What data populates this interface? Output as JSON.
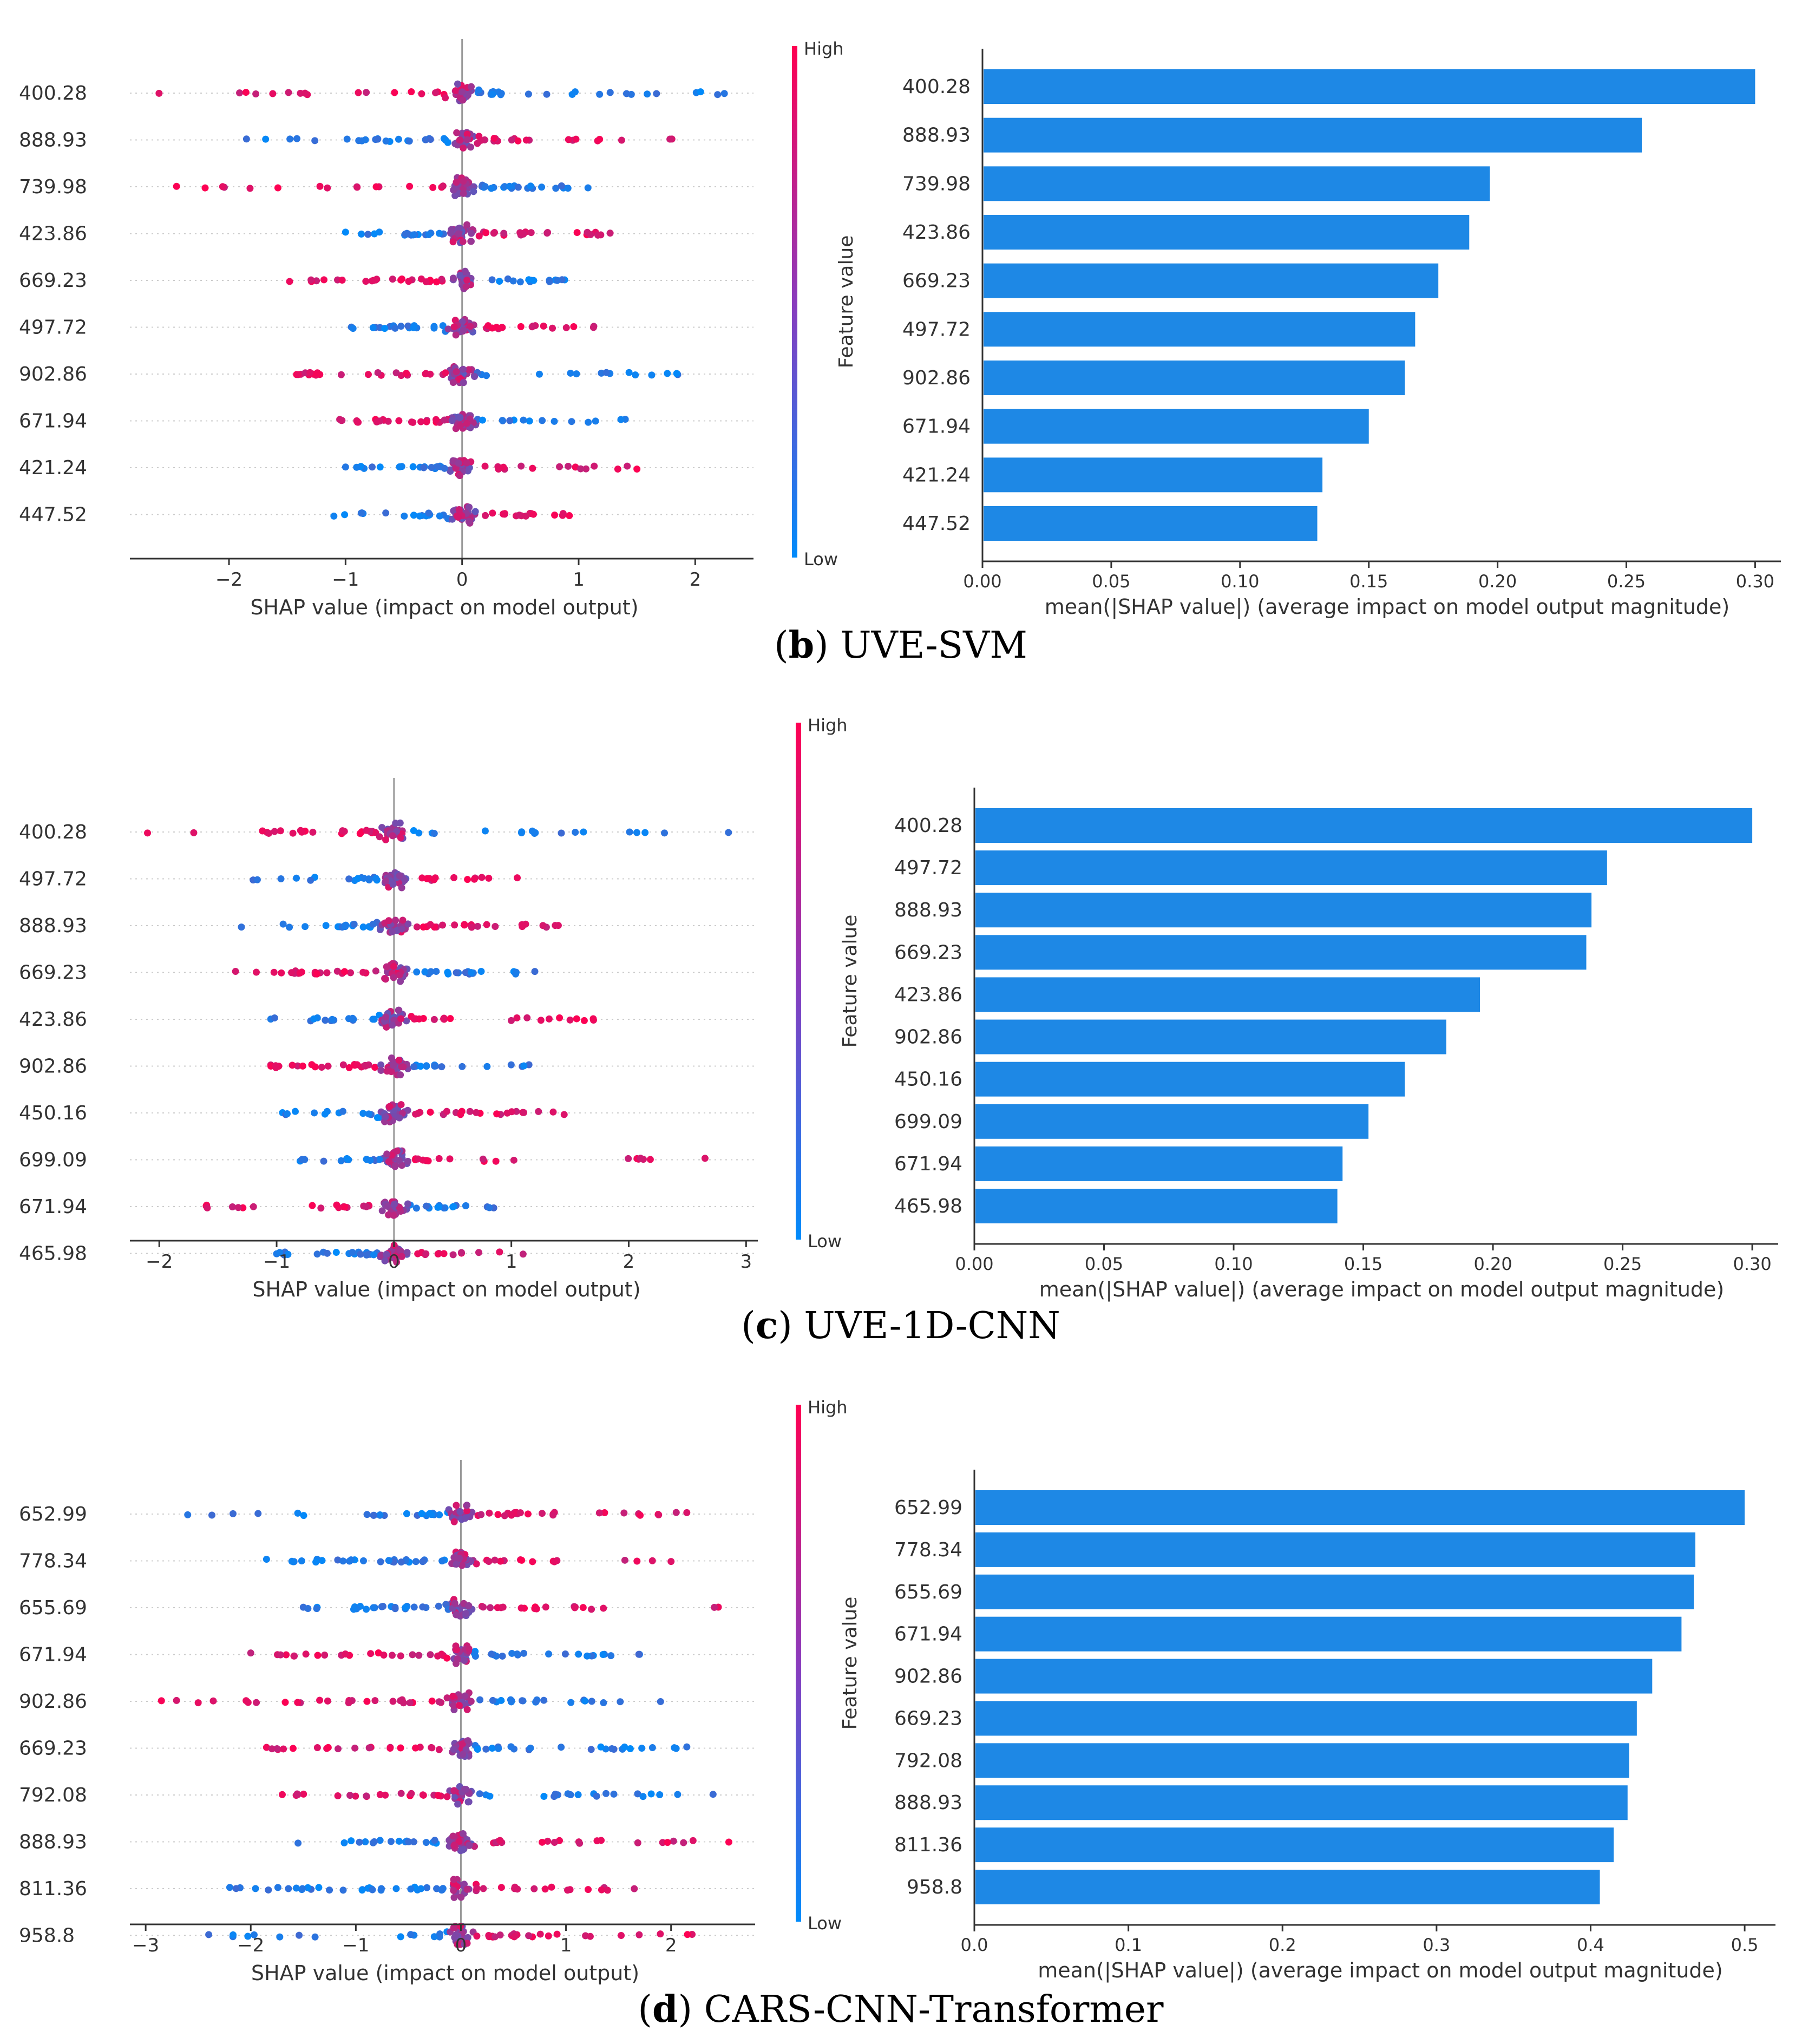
{
  "colors": {
    "high": "#ff0052",
    "low": "#008bfb",
    "bar": "#1e88e5",
    "axis": "#333333",
    "center_line": "#999999"
  },
  "colorbar": {
    "high_label": "High",
    "low_label": "Low",
    "title": "Feature value"
  },
  "panels": [
    {
      "caption_letter": "b",
      "caption_text": ") UVE-SVM",
      "caption_paren": "(",
      "chart_data": [
        {
          "type": "scatter",
          "subtype": "shap-beeswarm",
          "xlabel": "SHAP value (impact on model output)",
          "xlim": [
            -2.85,
            2.5
          ],
          "xticks": [
            -2,
            -1,
            0,
            1,
            2
          ],
          "xtick_labels": [
            "−2",
            "−1",
            "0",
            "1",
            "2"
          ],
          "features": [
            "400.28",
            "888.93",
            "739.98",
            "423.86",
            "669.23",
            "497.72",
            "902.86",
            "671.94",
            "421.24",
            "447.52"
          ],
          "extents": [
            [
              -2.6,
              2.25
            ],
            [
              -1.85,
              1.8
            ],
            [
              -2.45,
              1.08
            ],
            [
              -1.0,
              1.27
            ],
            [
              -1.48,
              0.88
            ],
            [
              -0.95,
              1.13
            ],
            [
              -1.42,
              1.85
            ],
            [
              -1.05,
              1.4
            ],
            [
              -1.0,
              1.5
            ],
            [
              -1.1,
              0.92
            ]
          ],
          "high_side": [
            "neg",
            "pos",
            "neg",
            "pos",
            "neg",
            "pos",
            "neg",
            "neg",
            "pos",
            "pos"
          ]
        },
        {
          "type": "bar",
          "orientation": "horizontal",
          "xlabel": "mean(|SHAP value|) (average impact on model output magnitude)",
          "xlim": [
            0,
            0.31
          ],
          "xticks": [
            0,
            0.05,
            0.1,
            0.15,
            0.2,
            0.25,
            0.3
          ],
          "xtick_labels": [
            "0.00",
            "0.05",
            "0.10",
            "0.15",
            "0.20",
            "0.25",
            "0.30"
          ],
          "categories": [
            "400.28",
            "888.93",
            "739.98",
            "423.86",
            "669.23",
            "497.72",
            "902.86",
            "671.94",
            "421.24",
            "447.52"
          ],
          "values": [
            0.3,
            0.256,
            0.197,
            0.189,
            0.177,
            0.168,
            0.164,
            0.15,
            0.132,
            0.13
          ]
        }
      ]
    },
    {
      "caption_letter": "c",
      "caption_text": ") UVE-1D-CNN",
      "caption_paren": "(",
      "chart_data": [
        {
          "type": "scatter",
          "subtype": "shap-beeswarm",
          "xlabel": "SHAP value (impact on model output)",
          "xlim": [
            -2.25,
            3.1
          ],
          "xticks": [
            -2,
            -1,
            0,
            1,
            2,
            3
          ],
          "xtick_labels": [
            "−2",
            "−1",
            "0",
            "1",
            "2",
            "3"
          ],
          "features": [
            "400.28",
            "497.72",
            "888.93",
            "669.23",
            "423.86",
            "902.86",
            "450.16",
            "699.09",
            "671.94",
            "465.98"
          ],
          "extents": [
            [
              -2.1,
              2.85
            ],
            [
              -1.2,
              1.05
            ],
            [
              -1.3,
              1.4
            ],
            [
              -1.35,
              1.2
            ],
            [
              -1.05,
              1.7
            ],
            [
              -1.05,
              1.15
            ],
            [
              -0.95,
              1.45
            ],
            [
              -0.8,
              2.65
            ],
            [
              -1.6,
              0.85
            ],
            [
              -1.0,
              1.1
            ]
          ],
          "high_side": [
            "neg",
            "pos",
            "pos",
            "neg",
            "pos",
            "neg",
            "pos",
            "pos",
            "neg",
            "pos"
          ]
        },
        {
          "type": "bar",
          "orientation": "horizontal",
          "xlabel": "mean(|SHAP value|) (average impact on model output magnitude)",
          "xlim": [
            0,
            0.31
          ],
          "xticks": [
            0,
            0.05,
            0.1,
            0.15,
            0.2,
            0.25,
            0.3
          ],
          "xtick_labels": [
            "0.00",
            "0.05",
            "0.10",
            "0.15",
            "0.20",
            "0.25",
            "0.30"
          ],
          "categories": [
            "400.28",
            "497.72",
            "888.93",
            "669.23",
            "423.86",
            "902.86",
            "450.16",
            "699.09",
            "671.94",
            "465.98"
          ],
          "values": [
            0.3,
            0.244,
            0.238,
            0.236,
            0.195,
            0.182,
            0.166,
            0.152,
            0.142,
            0.14
          ]
        }
      ]
    },
    {
      "caption_letter": "d",
      "caption_text": ") CARS-CNN-Transformer",
      "caption_paren": "(",
      "chart_data": [
        {
          "type": "scatter",
          "subtype": "shap-beeswarm",
          "xlabel": "SHAP value (impact on model output)",
          "xlim": [
            -3.15,
            2.8
          ],
          "xticks": [
            -3,
            -2,
            -1,
            0,
            1,
            2
          ],
          "xtick_labels": [
            "−3",
            "−2",
            "−1",
            "0",
            "1",
            "2"
          ],
          "features": [
            "652.99",
            "778.34",
            "655.69",
            "671.94",
            "902.86",
            "669.23",
            "792.08",
            "888.93",
            "811.36",
            "958.8"
          ],
          "extents": [
            [
              -2.6,
              2.15
            ],
            [
              -1.85,
              2.0
            ],
            [
              -1.5,
              2.45
            ],
            [
              -2.0,
              1.7
            ],
            [
              -2.85,
              1.9
            ],
            [
              -1.85,
              2.15
            ],
            [
              -1.7,
              2.4
            ],
            [
              -1.55,
              2.55
            ],
            [
              -2.2,
              1.65
            ],
            [
              -2.4,
              2.2
            ]
          ],
          "high_side": [
            "pos",
            "pos",
            "pos",
            "neg",
            "neg",
            "neg",
            "neg",
            "pos",
            "pos",
            "pos"
          ]
        },
        {
          "type": "bar",
          "orientation": "horizontal",
          "xlabel": "mean(|SHAP value|) (average impact on model output magnitude)",
          "xlim": [
            0,
            0.52
          ],
          "xticks": [
            0,
            0.1,
            0.2,
            0.3,
            0.4,
            0.5
          ],
          "xtick_labels": [
            "0.0",
            "0.1",
            "0.2",
            "0.3",
            "0.4",
            "0.5"
          ],
          "categories": [
            "652.99",
            "778.34",
            "655.69",
            "671.94",
            "902.86",
            "669.23",
            "792.08",
            "888.93",
            "811.36",
            "958.8"
          ],
          "values": [
            0.5,
            0.468,
            0.467,
            0.459,
            0.44,
            0.43,
            0.425,
            0.424,
            0.415,
            0.406
          ]
        }
      ]
    }
  ]
}
